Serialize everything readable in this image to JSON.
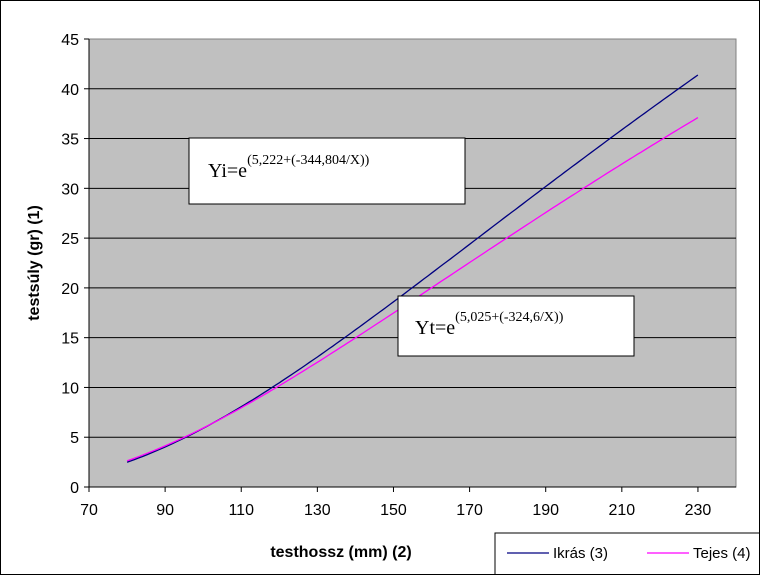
{
  "chart_data": {
    "type": "line",
    "xlabel": "testhossz (mm) (2)",
    "ylabel": "testsúly (gr) (1)",
    "xlim": [
      70,
      240
    ],
    "ylim": [
      0,
      45
    ],
    "xticks": [
      70,
      90,
      110,
      130,
      150,
      170,
      190,
      210,
      230
    ],
    "yticks": [
      0,
      5,
      10,
      15,
      20,
      25,
      30,
      35,
      40,
      45
    ],
    "plot_background": "#c0c0c0",
    "grid": true,
    "legend_position": "bottom-right",
    "series": [
      {
        "name": "Ikrás (3)",
        "color": "#000080",
        "model": {
          "a": 5.222,
          "b": -344.804
        },
        "x_range": [
          80,
          230
        ],
        "equation": {
          "lhs": "Yi=e",
          "exponent": "(5,222+(-344,804/X))"
        }
      },
      {
        "name": "Tejes (4)",
        "color": "#ff00ff",
        "model": {
          "a": 5.025,
          "b": -324.6
        },
        "x_range": [
          80,
          230
        ],
        "equation": {
          "lhs": "Yt=e",
          "exponent": "(5,025+(-324,6/X))"
        }
      }
    ]
  }
}
